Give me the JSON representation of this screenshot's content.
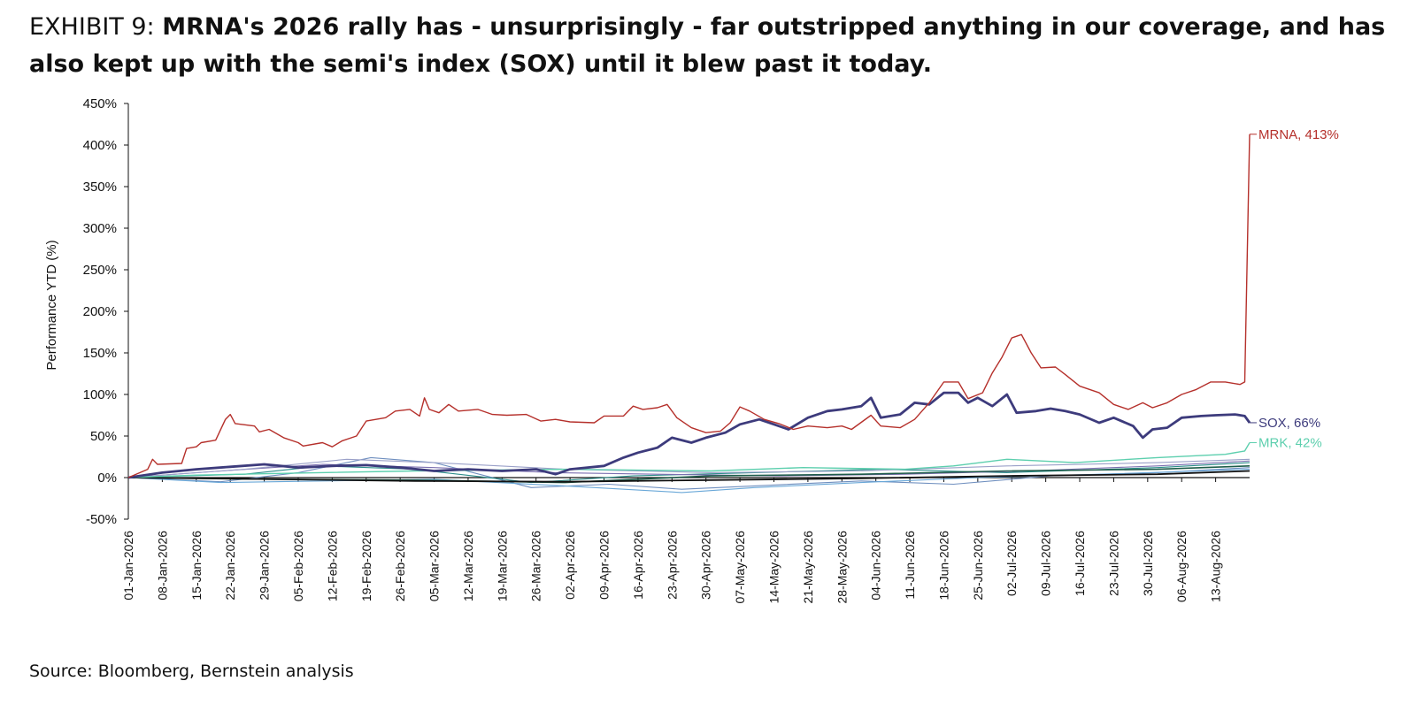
{
  "header": {
    "exhibit": "EXHIBIT 9: ",
    "headline": "MRNA's 2026 rally has - unsurprisingly - far outstripped anything in our coverage, and has also kept up with the semi's index (SOX) until it blew past it today."
  },
  "footer": {
    "source": "Source: Bloomberg, Bernstein analysis"
  },
  "chart_data": {
    "type": "line",
    "title": "",
    "ylabel": "Performance YTD (%)",
    "xlabel": "",
    "ylim": [
      -50,
      450
    ],
    "y_ticks": [
      "-50%",
      "0%",
      "50%",
      "100%",
      "150%",
      "200%",
      "250%",
      "300%",
      "350%",
      "400%",
      "450%"
    ],
    "x_ticks": [
      "01-Jan-2026",
      "08-Jan-2026",
      "15-Jan-2026",
      "22-Jan-2026",
      "29-Jan-2026",
      "05-Feb-2026",
      "12-Feb-2026",
      "19-Feb-2026",
      "26-Feb-2026",
      "05-Mar-2026",
      "12-Mar-2026",
      "19-Mar-2026",
      "26-Mar-2026",
      "02-Apr-2026",
      "09-Apr-2026",
      "16-Apr-2026",
      "23-Apr-2026",
      "30-Apr-2026",
      "07-May-2026",
      "14-May-2026",
      "21-May-2026",
      "28-May-2026",
      "04-Jun-2026",
      "11-Jun-2026",
      "18-Jun-2026",
      "25-Jun-2026",
      "02-Jul-2026",
      "09-Jul-2026",
      "16-Jul-2026",
      "23-Jul-2026",
      "30-Jul-2026",
      "06-Aug-2026",
      "13-Aug-2026"
    ],
    "x_domain": [
      "01-Jan-2026",
      "20-Aug-2026"
    ],
    "grid": false,
    "series": [
      {
        "name": "MRNA",
        "end_label": "MRNA, 413%",
        "color": "#b5302b",
        "width": 1.4,
        "points": [
          [
            "01-Jan-2026",
            0
          ],
          [
            "05-Jan-2026",
            10
          ],
          [
            "06-Jan-2026",
            22
          ],
          [
            "07-Jan-2026",
            16
          ],
          [
            "12-Jan-2026",
            17
          ],
          [
            "13-Jan-2026",
            35
          ],
          [
            "15-Jan-2026",
            37
          ],
          [
            "16-Jan-2026",
            42
          ],
          [
            "19-Jan-2026",
            45
          ],
          [
            "21-Jan-2026",
            70
          ],
          [
            "22-Jan-2026",
            76
          ],
          [
            "23-Jan-2026",
            65
          ],
          [
            "27-Jan-2026",
            62
          ],
          [
            "28-Jan-2026",
            55
          ],
          [
            "30-Jan-2026",
            58
          ],
          [
            "02-Feb-2026",
            48
          ],
          [
            "05-Feb-2026",
            42
          ],
          [
            "06-Feb-2026",
            38
          ],
          [
            "10-Feb-2026",
            42
          ],
          [
            "12-Feb-2026",
            37
          ],
          [
            "14-Feb-2026",
            44
          ],
          [
            "17-Feb-2026",
            50
          ],
          [
            "19-Feb-2026",
            68
          ],
          [
            "23-Feb-2026",
            72
          ],
          [
            "25-Feb-2026",
            80
          ],
          [
            "28-Feb-2026",
            82
          ],
          [
            "02-Mar-2026",
            74
          ],
          [
            "03-Mar-2026",
            96
          ],
          [
            "04-Mar-2026",
            82
          ],
          [
            "06-Mar-2026",
            78
          ],
          [
            "08-Mar-2026",
            88
          ],
          [
            "10-Mar-2026",
            80
          ],
          [
            "14-Mar-2026",
            82
          ],
          [
            "17-Mar-2026",
            76
          ],
          [
            "20-Mar-2026",
            75
          ],
          [
            "24-Mar-2026",
            76
          ],
          [
            "27-Mar-2026",
            68
          ],
          [
            "30-Mar-2026",
            70
          ],
          [
            "02-Apr-2026",
            67
          ],
          [
            "07-Apr-2026",
            66
          ],
          [
            "09-Apr-2026",
            74
          ],
          [
            "13-Apr-2026",
            74
          ],
          [
            "15-Apr-2026",
            86
          ],
          [
            "17-Apr-2026",
            82
          ],
          [
            "20-Apr-2026",
            84
          ],
          [
            "22-Apr-2026",
            88
          ],
          [
            "24-Apr-2026",
            72
          ],
          [
            "27-Apr-2026",
            60
          ],
          [
            "30-Apr-2026",
            54
          ],
          [
            "03-May-2026",
            56
          ],
          [
            "05-May-2026",
            66
          ],
          [
            "07-May-2026",
            85
          ],
          [
            "09-May-2026",
            80
          ],
          [
            "12-May-2026",
            70
          ],
          [
            "15-May-2026",
            65
          ],
          [
            "18-May-2026",
            58
          ],
          [
            "21-May-2026",
            62
          ],
          [
            "25-May-2026",
            60
          ],
          [
            "28-May-2026",
            62
          ],
          [
            "30-May-2026",
            58
          ],
          [
            "03-Jun-2026",
            75
          ],
          [
            "05-Jun-2026",
            62
          ],
          [
            "09-Jun-2026",
            60
          ],
          [
            "12-Jun-2026",
            70
          ],
          [
            "15-Jun-2026",
            90
          ],
          [
            "18-Jun-2026",
            115
          ],
          [
            "21-Jun-2026",
            115
          ],
          [
            "23-Jun-2026",
            95
          ],
          [
            "26-Jun-2026",
            102
          ],
          [
            "28-Jun-2026",
            126
          ],
          [
            "30-Jun-2026",
            145
          ],
          [
            "02-Jul-2026",
            168
          ],
          [
            "04-Jul-2026",
            172
          ],
          [
            "06-Jul-2026",
            150
          ],
          [
            "08-Jul-2026",
            132
          ],
          [
            "11-Jul-2026",
            133
          ],
          [
            "13-Jul-2026",
            124
          ],
          [
            "16-Jul-2026",
            110
          ],
          [
            "20-Jul-2026",
            102
          ],
          [
            "23-Jul-2026",
            88
          ],
          [
            "26-Jul-2026",
            82
          ],
          [
            "29-Jul-2026",
            90
          ],
          [
            "31-Jul-2026",
            84
          ],
          [
            "03-Aug-2026",
            90
          ],
          [
            "06-Aug-2026",
            100
          ],
          [
            "09-Aug-2026",
            106
          ],
          [
            "12-Aug-2026",
            115
          ],
          [
            "15-Aug-2026",
            115
          ],
          [
            "18-Aug-2026",
            112
          ],
          [
            "19-Aug-2026",
            115
          ],
          [
            "20-Aug-2026",
            413
          ]
        ]
      },
      {
        "name": "SOX",
        "end_label": "SOX, 66%",
        "color": "#3d3b7c",
        "width": 2.8,
        "points": [
          [
            "01-Jan-2026",
            0
          ],
          [
            "08-Jan-2026",
            6
          ],
          [
            "15-Jan-2026",
            10
          ],
          [
            "22-Jan-2026",
            13
          ],
          [
            "29-Jan-2026",
            16
          ],
          [
            "05-Feb-2026",
            12
          ],
          [
            "12-Feb-2026",
            14
          ],
          [
            "19-Feb-2026",
            15
          ],
          [
            "26-Feb-2026",
            12
          ],
          [
            "05-Mar-2026",
            8
          ],
          [
            "12-Mar-2026",
            10
          ],
          [
            "19-Mar-2026",
            8
          ],
          [
            "26-Mar-2026",
            10
          ],
          [
            "30-Mar-2026",
            4
          ],
          [
            "02-Apr-2026",
            10
          ],
          [
            "09-Apr-2026",
            14
          ],
          [
            "13-Apr-2026",
            24
          ],
          [
            "16-Apr-2026",
            30
          ],
          [
            "20-Apr-2026",
            36
          ],
          [
            "23-Apr-2026",
            48
          ],
          [
            "27-Apr-2026",
            42
          ],
          [
            "30-Apr-2026",
            48
          ],
          [
            "04-May-2026",
            54
          ],
          [
            "07-May-2026",
            64
          ],
          [
            "11-May-2026",
            70
          ],
          [
            "14-May-2026",
            64
          ],
          [
            "17-May-2026",
            58
          ],
          [
            "21-May-2026",
            72
          ],
          [
            "25-May-2026",
            80
          ],
          [
            "28-May-2026",
            82
          ],
          [
            "01-Jun-2026",
            86
          ],
          [
            "03-Jun-2026",
            96
          ],
          [
            "05-Jun-2026",
            72
          ],
          [
            "09-Jun-2026",
            76
          ],
          [
            "12-Jun-2026",
            90
          ],
          [
            "15-Jun-2026",
            88
          ],
          [
            "18-Jun-2026",
            102
          ],
          [
            "21-Jun-2026",
            102
          ],
          [
            "23-Jun-2026",
            90
          ],
          [
            "25-Jun-2026",
            96
          ],
          [
            "28-Jun-2026",
            86
          ],
          [
            "01-Jul-2026",
            100
          ],
          [
            "03-Jul-2026",
            78
          ],
          [
            "07-Jul-2026",
            80
          ],
          [
            "10-Jul-2026",
            83
          ],
          [
            "13-Jul-2026",
            80
          ],
          [
            "16-Jul-2026",
            76
          ],
          [
            "20-Jul-2026",
            66
          ],
          [
            "23-Jul-2026",
            72
          ],
          [
            "27-Jul-2026",
            62
          ],
          [
            "29-Jul-2026",
            48
          ],
          [
            "31-Jul-2026",
            58
          ],
          [
            "03-Aug-2026",
            60
          ],
          [
            "06-Aug-2026",
            72
          ],
          [
            "10-Aug-2026",
            74
          ],
          [
            "13-Aug-2026",
            75
          ],
          [
            "17-Aug-2026",
            76
          ],
          [
            "19-Aug-2026",
            74
          ],
          [
            "20-Aug-2026",
            66
          ]
        ]
      },
      {
        "name": "MRK",
        "end_label": "MRK, 42%",
        "color": "#5dcfae",
        "width": 1.4,
        "points": [
          [
            "01-Jan-2026",
            0
          ],
          [
            "15-Jan-2026",
            3
          ],
          [
            "01-Feb-2026",
            5
          ],
          [
            "01-Mar-2026",
            8
          ],
          [
            "01-Apr-2026",
            10
          ],
          [
            "01-May-2026",
            8
          ],
          [
            "20-May-2026",
            12
          ],
          [
            "10-Jun-2026",
            10
          ],
          [
            "20-Jun-2026",
            14
          ],
          [
            "01-Jul-2026",
            22
          ],
          [
            "15-Jul-2026",
            18
          ],
          [
            "01-Aug-2026",
            24
          ],
          [
            "15-Aug-2026",
            28
          ],
          [
            "19-Aug-2026",
            32
          ],
          [
            "20-Aug-2026",
            42
          ]
        ]
      },
      {
        "name": "",
        "color": "#6f8fbf",
        "width": 1.1,
        "points": [
          [
            "01-Jan-2026",
            0
          ],
          [
            "20-Jan-2026",
            -5
          ],
          [
            "05-Feb-2026",
            6
          ],
          [
            "20-Feb-2026",
            24
          ],
          [
            "05-Mar-2026",
            18
          ],
          [
            "25-Mar-2026",
            -12
          ],
          [
            "10-Apr-2026",
            -8
          ],
          [
            "25-Apr-2026",
            -14
          ],
          [
            "10-May-2026",
            -10
          ],
          [
            "01-Jun-2026",
            -4
          ],
          [
            "20-Jun-2026",
            -8
          ],
          [
            "10-Jul-2026",
            2
          ],
          [
            "01-Aug-2026",
            6
          ],
          [
            "20-Aug-2026",
            12
          ]
        ]
      },
      {
        "name": "",
        "color": "#2c8e8a",
        "width": 1.1,
        "points": [
          [
            "01-Jan-2026",
            0
          ],
          [
            "25-Jan-2026",
            4
          ],
          [
            "10-Feb-2026",
            14
          ],
          [
            "01-Mar-2026",
            10
          ],
          [
            "25-Mar-2026",
            -6
          ],
          [
            "15-Apr-2026",
            2
          ],
          [
            "10-May-2026",
            6
          ],
          [
            "05-Jun-2026",
            10
          ],
          [
            "01-Jul-2026",
            6
          ],
          [
            "01-Aug-2026",
            12
          ],
          [
            "20-Aug-2026",
            18
          ]
        ]
      },
      {
        "name": "",
        "color": "#7b6fb0",
        "width": 1.1,
        "points": [
          [
            "01-Jan-2026",
            0
          ],
          [
            "20-Jan-2026",
            8
          ],
          [
            "10-Feb-2026",
            16
          ],
          [
            "05-Mar-2026",
            12
          ],
          [
            "30-Mar-2026",
            6
          ],
          [
            "20-Apr-2026",
            4
          ],
          [
            "15-May-2026",
            2
          ],
          [
            "10-Jun-2026",
            4
          ],
          [
            "05-Jul-2026",
            8
          ],
          [
            "01-Aug-2026",
            14
          ],
          [
            "20-Aug-2026",
            20
          ]
        ]
      },
      {
        "name": "",
        "color": "#6aa8d8",
        "width": 1.1,
        "points": [
          [
            "01-Jan-2026",
            0
          ],
          [
            "20-Jan-2026",
            -6
          ],
          [
            "10-Feb-2026",
            -4
          ],
          [
            "05-Mar-2026",
            -2
          ],
          [
            "01-Apr-2026",
            -10
          ],
          [
            "25-Apr-2026",
            -18
          ],
          [
            "10-May-2026",
            -12
          ],
          [
            "01-Jun-2026",
            -6
          ],
          [
            "25-Jun-2026",
            0
          ],
          [
            "20-Jul-2026",
            4
          ],
          [
            "20-Aug-2026",
            10
          ]
        ]
      },
      {
        "name": "",
        "color": "#1e5c4a",
        "width": 1.6,
        "points": [
          [
            "01-Jan-2026",
            0
          ],
          [
            "01-Feb-2026",
            -2
          ],
          [
            "01-Mar-2026",
            -3
          ],
          [
            "01-Apr-2026",
            -6
          ],
          [
            "01-May-2026",
            2
          ],
          [
            "01-Jun-2026",
            4
          ],
          [
            "01-Jul-2026",
            8
          ],
          [
            "01-Aug-2026",
            10
          ],
          [
            "20-Aug-2026",
            14
          ]
        ]
      },
      {
        "name": "",
        "color": "#111111",
        "width": 1.8,
        "points": [
          [
            "01-Jan-2026",
            0
          ],
          [
            "01-Feb-2026",
            -2
          ],
          [
            "01-Mar-2026",
            -4
          ],
          [
            "01-Apr-2026",
            -5
          ],
          [
            "01-May-2026",
            -3
          ],
          [
            "01-Jun-2026",
            -1
          ],
          [
            "01-Jul-2026",
            2
          ],
          [
            "01-Aug-2026",
            4
          ],
          [
            "20-Aug-2026",
            8
          ]
        ]
      },
      {
        "name": "",
        "color": "#9aa0c8",
        "width": 1.1,
        "points": [
          [
            "01-Jan-2026",
            0
          ],
          [
            "25-Jan-2026",
            10
          ],
          [
            "15-Feb-2026",
            22
          ],
          [
            "05-Mar-2026",
            18
          ],
          [
            "01-Apr-2026",
            10
          ],
          [
            "01-May-2026",
            6
          ],
          [
            "01-Jun-2026",
            8
          ],
          [
            "01-Jul-2026",
            14
          ],
          [
            "01-Aug-2026",
            18
          ],
          [
            "20-Aug-2026",
            22
          ]
        ]
      }
    ]
  }
}
